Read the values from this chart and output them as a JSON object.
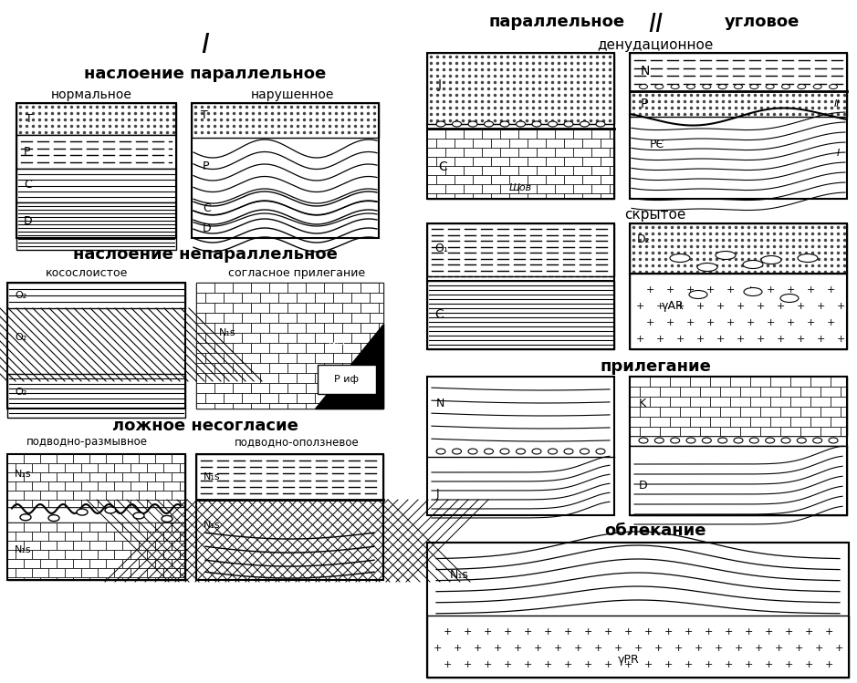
{
  "bg_color": "#ffffff",
  "title_I": "I",
  "title_II": "II",
  "label_parallel": "наслоение параллельное",
  "label_normal": "нормальное",
  "label_disturbed": "нарушенное",
  "label_nonparallel": "наслоение непараллельное",
  "label_crossbedded": "косослоистое",
  "label_conformable": "согласное прилегание",
  "label_false_discordance": "ложное несогласие",
  "label_underwater_erosion": "подводно-размывное",
  "label_underwater_landslide": "подводно-оползневое",
  "label_parallel_II": "параллельное",
  "label_angular": "угловое",
  "label_denudation": "денудационное",
  "label_hidden": "скрытое",
  "label_abutment": "прилегание",
  "label_draping": "облекание"
}
